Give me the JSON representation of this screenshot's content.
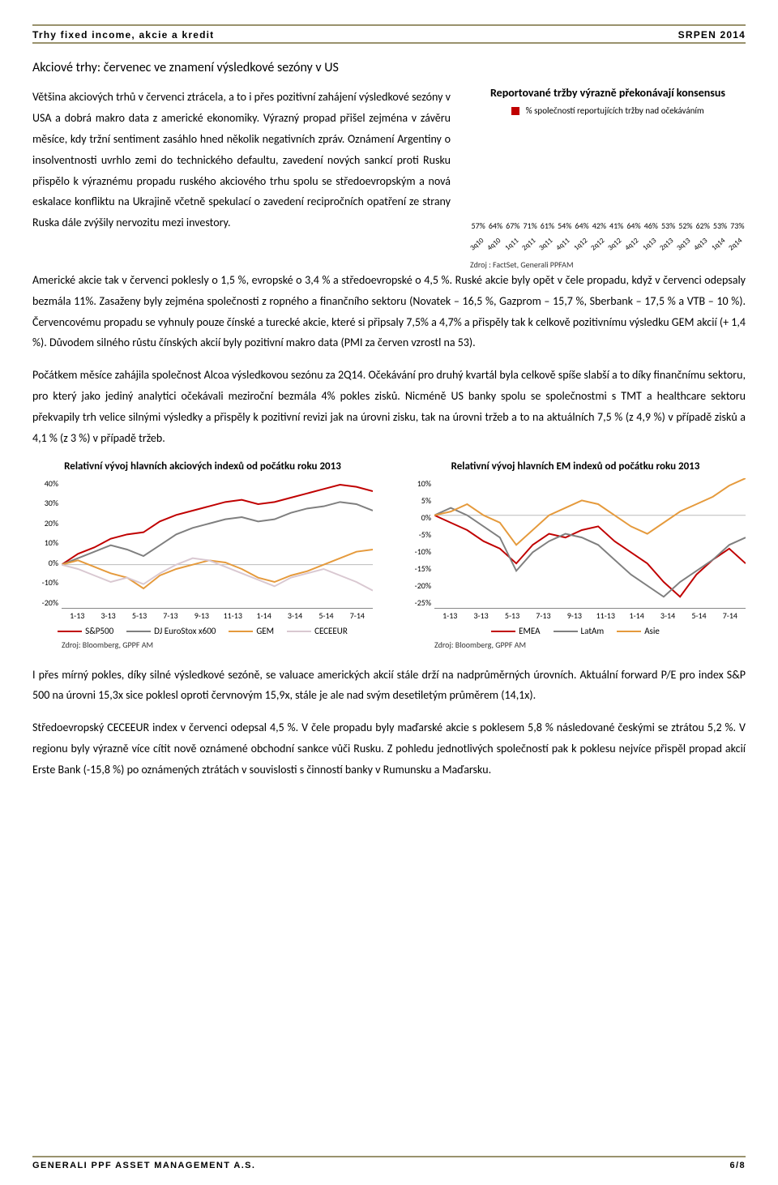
{
  "header": {
    "left": "Trhy fixed income, akcie a kredit",
    "right": "SRPEN 2014"
  },
  "section_title": "Akciové trhy: červenec ve znamení výsledkové sezóny v US",
  "intro_para": "Většina akciových trhů v červenci ztrácela, a to i přes pozitivní zahájení výsledkové sezóny v USA a dobrá makro data z americké ekonomiky. Výrazný propad přišel zejména v závěru měsíce, kdy tržní sentiment zasáhlo hned několik negativních zpráv. Oznámení Argentiny o insolventnosti uvrhlo zemi do technického defaultu, zavedení nových sankcí proti Rusku přispělo k výraznému propadu ruského akciového trhu spolu se středoevropským a nová eskalace konfliktu na Ukrajině včetně spekulací o zavedení recipročních opatření ze strany Ruska dále zvýšily nervozitu mezi investory.",
  "bar_chart": {
    "title": "Reportované tržby výrazně překonávají konsensus",
    "legend_label": "% společností reportujících tržby nad očekáváním",
    "legend_color": "#c00000",
    "categories": [
      "3q10",
      "4q10",
      "1q11",
      "2q11",
      "3q11",
      "4q11",
      "1q12",
      "2q12",
      "3q12",
      "4q12",
      "1q13",
      "2q13",
      "3q13",
      "4q13",
      "1q14",
      "2q14"
    ],
    "values": [
      57,
      64,
      67,
      71,
      61,
      54,
      64,
      42,
      41,
      64,
      46,
      53,
      52,
      62,
      53,
      73
    ],
    "bar_color": "#c00000",
    "ymax": 80,
    "source": "Zdroj : FactSet, Generali PPFAM"
  },
  "para2": "Americké akcie tak v červenci poklesly o 1,5 %, evropské o 3,4 % a středoevropské o 4,5 %. Ruské akcie byly opět v čele propadu, když v červenci odepsaly bezmála 11%. Zasaženy byly zejména společnosti z ropného a finančního sektoru (Novatek – 16,5 %, Gazprom – 15,7 %, Sberbank – 17,5 % a VTB – 10 %). Červencovému propadu se vyhnuly pouze čínské a turecké akcie, které si připsaly 7,5% a 4,7% a přispěly tak k celkově pozitivnímu výsledku GEM akcií (+ 1,4 %). Důvodem silného růstu čínských akcií byly pozitivní makro data (PMI za červen vzrostl na 53).",
  "para3": "Počátkem měsíce zahájila společnost Alcoa výsledkovou sezónu za 2Q14. Očekávání pro druhý kvartál byla celkově spíše slabší a to díky finančnímu sektoru, pro který jako jediný analytici očekávali meziroční bezmála 4% pokles zisků. Nicméně US banky spolu se společnostmi s TMT a healthcare sektoru překvapily trh velice silnými výsledky a přispěly k pozitivní revizi jak na úrovni zisku, tak na úrovni tržeb a to na aktuálních 7,5 % (z 4,9 %) v případě zisků a 4,1 % (z 3 %) v případě tržeb.",
  "line_chart_left": {
    "title": "Relativní vývoj hlavních akciových indexů od počátku roku 2013",
    "yticks": [
      "40%",
      "30%",
      "20%",
      "10%",
      "0%",
      "-10%",
      "-20%"
    ],
    "ymin": -20,
    "ymax": 40,
    "xticks": [
      "1-13",
      "3-13",
      "5-13",
      "7-13",
      "9-13",
      "11-13",
      "1-14",
      "3-14",
      "5-14",
      "7-14"
    ],
    "series": [
      {
        "name": "S&P500",
        "color": "#c00000",
        "values": [
          0,
          5,
          8,
          12,
          14,
          15,
          20,
          23,
          25,
          27,
          29,
          30,
          28,
          29,
          31,
          33,
          35,
          37,
          36,
          34
        ]
      },
      {
        "name": "DJ EuroStox x600",
        "color": "#7f7f7f",
        "values": [
          0,
          3,
          6,
          9,
          7,
          4,
          9,
          14,
          17,
          19,
          21,
          22,
          20,
          21,
          24,
          26,
          27,
          29,
          28,
          25
        ]
      },
      {
        "name": "GEM",
        "color": "#e59a3c",
        "values": [
          0,
          2,
          -1,
          -4,
          -6,
          -11,
          -5,
          -2,
          0,
          2,
          1,
          -2,
          -6,
          -8,
          -5,
          -3,
          0,
          3,
          6,
          7
        ]
      },
      {
        "name": "CECEEUR",
        "color": "#d9c8d1",
        "values": [
          0,
          -2,
          -5,
          -8,
          -6,
          -9,
          -4,
          0,
          3,
          2,
          -1,
          -4,
          -7,
          -10,
          -6,
          -4,
          -2,
          -5,
          -8,
          -12
        ]
      }
    ],
    "source": "Zdroj: Bloomberg, GPPF AM"
  },
  "line_chart_right": {
    "title": "Relativní vývoj hlavních EM indexů od počátku roku 2013",
    "yticks": [
      "10%",
      "5%",
      "0%",
      "-5%",
      "-10%",
      "-15%",
      "-20%",
      "-25%"
    ],
    "ymin": -25,
    "ymax": 10,
    "xticks": [
      "1-13",
      "3-13",
      "5-13",
      "7-13",
      "9-13",
      "11-13",
      "1-14",
      "3-14",
      "5-14",
      "7-14"
    ],
    "series": [
      {
        "name": "EMEA",
        "color": "#c00000",
        "values": [
          0,
          -2,
          -4,
          -7,
          -9,
          -13,
          -8,
          -5,
          -6,
          -4,
          -3,
          -7,
          -10,
          -13,
          -18,
          -22,
          -16,
          -12,
          -9,
          -13
        ]
      },
      {
        "name": "LatAm",
        "color": "#7f7f7f",
        "values": [
          0,
          2,
          0,
          -3,
          -6,
          -15,
          -10,
          -7,
          -5,
          -6,
          -8,
          -12,
          -16,
          -19,
          -22,
          -18,
          -15,
          -12,
          -8,
          -6
        ]
      },
      {
        "name": "Asie",
        "color": "#e59a3c",
        "values": [
          0,
          1,
          3,
          0,
          -2,
          -8,
          -4,
          0,
          2,
          4,
          3,
          0,
          -3,
          -5,
          -2,
          1,
          3,
          5,
          8,
          10
        ]
      }
    ],
    "source": "Zdroj: Bloomberg, GPPF AM"
  },
  "para4": "I přes mírný pokles, díky silné výsledkové sezóně, se valuace amerických akcií stále drží na nadprůměrných úrovních. Aktuální forward P/E pro index S&P 500 na úrovni 15,3x sice poklesl oproti červnovým 15,9x, stále je ale nad svým desetiletým průměrem (14,1x).",
  "para5": "Středoevropský CECEEUR index v červenci odepsal 4,5 %. V čele propadu byly maďarské akcie s poklesem 5,8 % následované českými se ztrátou 5,2 %. V regionu byly výrazně více cítit nově oznámené obchodní sankce vůči Rusku. Z pohledu jednotlivých společností pak k poklesu nejvíce přispěl propad akcií Erste Bank (-15,8 %) po oznámených ztrátách v souvislosti s činností banky v Rumunsku a Maďarsku.",
  "footer": {
    "left": "GENERALI PPF ASSET MANAGEMENT A.S.",
    "right": "6/8"
  }
}
